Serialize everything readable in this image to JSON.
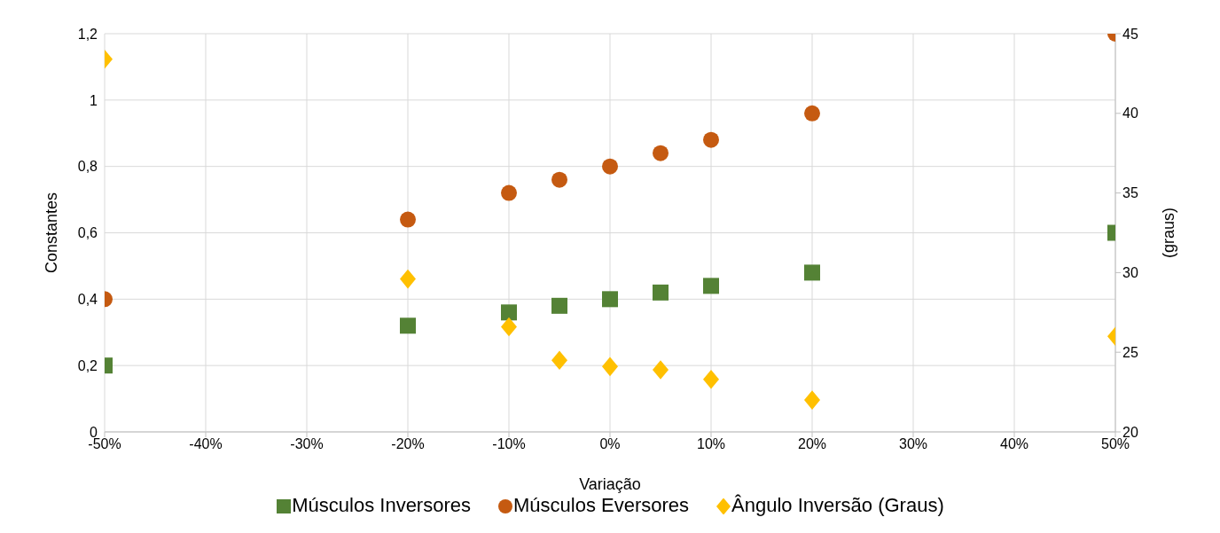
{
  "chart_data": {
    "type": "scatter",
    "xlabel": "Variação",
    "ylabel": "Constantes",
    "y2label": "(graus)",
    "x": [
      -0.5,
      -0.2,
      -0.1,
      -0.05,
      0,
      0.05,
      0.1,
      0.2,
      0.5
    ],
    "series": [
      {
        "name": "Músculos Inversores",
        "color": "#548235",
        "marker": "square",
        "values": [
          0.2,
          0.32,
          0.36,
          0.38,
          0.4,
          0.42,
          0.44,
          0.48,
          0.6
        ]
      },
      {
        "name": "Músculos Eversores",
        "color": "#c55a11",
        "marker": "circle",
        "values": [
          0.4,
          0.64,
          0.72,
          0.76,
          0.8,
          0.84,
          0.88,
          0.96,
          1.2
        ]
      },
      {
        "name": "Ângulo Inversão (Graus)",
        "color": "#ffc000",
        "marker": "diamond",
        "axis": "y2",
        "values": [
          43.4,
          29.6,
          26.6,
          24.5,
          24.1,
          23.9,
          23.3,
          22.0,
          26.0
        ]
      }
    ],
    "xlim": [
      -0.5,
      0.5
    ],
    "xticks": [
      {
        "value": -0.5,
        "label": "-50%"
      },
      {
        "value": -0.4,
        "label": "-40%"
      },
      {
        "value": -0.3,
        "label": "-30%"
      },
      {
        "value": -0.2,
        "label": "-20%"
      },
      {
        "value": -0.1,
        "label": "-10%"
      },
      {
        "value": 0,
        "label": "0%"
      },
      {
        "value": 0.1,
        "label": "10%"
      },
      {
        "value": 0.2,
        "label": "20%"
      },
      {
        "value": 0.3,
        "label": "30%"
      },
      {
        "value": 0.4,
        "label": "40%"
      },
      {
        "value": 0.5,
        "label": "50%"
      }
    ],
    "ylim": [
      0,
      1.2
    ],
    "yticks": [
      0,
      {
        "value": 0.2,
        "label": "0,2"
      },
      {
        "value": 0.4,
        "label": "0,4"
      },
      {
        "value": 0.6,
        "label": "0,6"
      },
      {
        "value": 0.8,
        "label": "0,8"
      },
      1,
      {
        "value": 1.2,
        "label": "1,2"
      }
    ],
    "y2lim": [
      20,
      45
    ],
    "y2ticks": [
      20,
      25,
      30,
      35,
      40,
      45
    ],
    "grid": true,
    "legend": "bottom"
  }
}
